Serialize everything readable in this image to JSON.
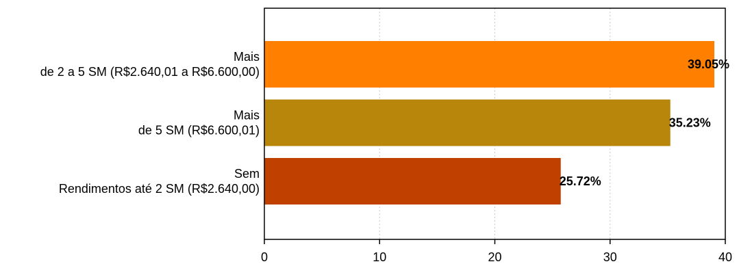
{
  "chart_data": {
    "type": "bar",
    "orientation": "horizontal",
    "title": "",
    "xlabel": "",
    "ylabel": "",
    "xlim": [
      0,
      40
    ],
    "x_ticks": [
      0,
      10,
      20,
      30,
      40
    ],
    "grid": "vertical dotted",
    "categories": [
      {
        "line1": "Mais",
        "line2": "de 2 a 5 SM (R$2.640,01 a R$6.600,00)"
      },
      {
        "line1": "Mais",
        "line2": "de 5 SM (R$6.600,01)"
      },
      {
        "line1": "Sem",
        "line2": "Rendimentos até 2 SM (R$2.640,00)"
      }
    ],
    "values": [
      39.05,
      35.23,
      25.72
    ],
    "value_labels": [
      "39.05%",
      "35.23%",
      "25.72%"
    ],
    "colors": [
      "#ff8000",
      "#b8860b",
      "#c04000"
    ]
  }
}
